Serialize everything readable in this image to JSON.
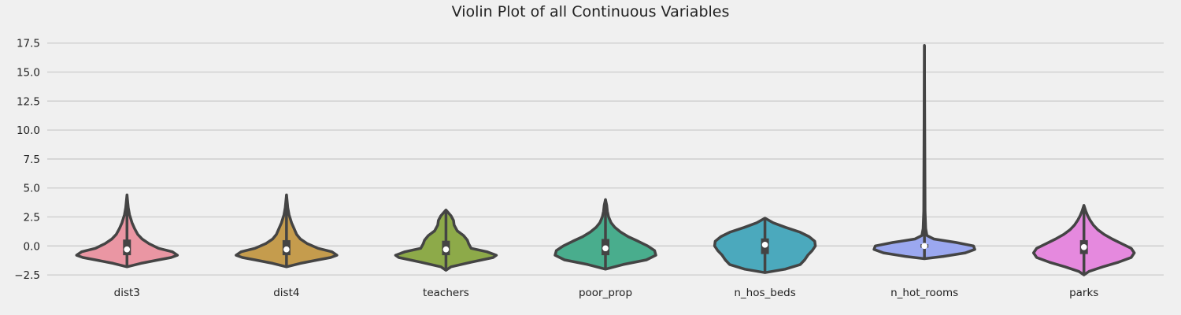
{
  "chart_data": {
    "type": "violin",
    "title": "Violin Plot of all Continuous Variables",
    "xlabel": "",
    "ylabel": "",
    "ylim": [
      -2.9,
      18.5
    ],
    "yticks": [
      -2.5,
      0.0,
      2.5,
      5.0,
      7.5,
      10.0,
      12.5,
      15.0,
      17.5
    ],
    "ytick_labels": [
      "−2.5",
      "0.0",
      "2.5",
      "5.0",
      "7.5",
      "10.0",
      "12.5",
      "15.0",
      "17.5"
    ],
    "grid": "y",
    "categories": [
      "dist3",
      "dist4",
      "teachers",
      "poor_prop",
      "n_hos_beds",
      "n_hot_rooms",
      "parks"
    ],
    "colors": [
      "#ea96a3",
      "#c59c4d",
      "#8daa49",
      "#49ad8d",
      "#4ba9bd",
      "#9ba8f0",
      "#e589de"
    ],
    "violins": [
      {
        "name": "dist3",
        "min": -1.8,
        "q1": -0.8,
        "median": -0.3,
        "q3": 0.55,
        "max": 4.4,
        "profile": [
          [
            -1.8,
            0.0
          ],
          [
            -1.5,
            0.22
          ],
          [
            -1.2,
            0.5
          ],
          [
            -1.0,
            0.7
          ],
          [
            -0.8,
            0.8
          ],
          [
            -0.5,
            0.72
          ],
          [
            -0.2,
            0.5
          ],
          [
            0.2,
            0.35
          ],
          [
            0.6,
            0.24
          ],
          [
            1.0,
            0.17
          ],
          [
            1.5,
            0.12
          ],
          [
            2.0,
            0.08
          ],
          [
            2.7,
            0.04
          ],
          [
            3.3,
            0.02
          ],
          [
            4.4,
            0.0
          ]
        ]
      },
      {
        "name": "dist4",
        "min": -1.8,
        "q1": -0.8,
        "median": -0.3,
        "q3": 0.5,
        "max": 4.4,
        "profile": [
          [
            -1.8,
            0.0
          ],
          [
            -1.5,
            0.22
          ],
          [
            -1.2,
            0.5
          ],
          [
            -1.0,
            0.7
          ],
          [
            -0.8,
            0.8
          ],
          [
            -0.5,
            0.72
          ],
          [
            -0.2,
            0.5
          ],
          [
            0.2,
            0.33
          ],
          [
            0.6,
            0.22
          ],
          [
            1.0,
            0.16
          ],
          [
            1.5,
            0.12
          ],
          [
            2.0,
            0.08
          ],
          [
            2.7,
            0.04
          ],
          [
            3.3,
            0.02
          ],
          [
            4.4,
            0.0
          ]
        ]
      },
      {
        "name": "teachers",
        "min": -2.1,
        "q1": -0.8,
        "median": -0.3,
        "q3": 0.45,
        "max": 3.1,
        "profile": [
          [
            -2.1,
            0.0
          ],
          [
            -1.8,
            0.08
          ],
          [
            -1.4,
            0.4
          ],
          [
            -1.0,
            0.75
          ],
          [
            -0.8,
            0.8
          ],
          [
            -0.5,
            0.65
          ],
          [
            -0.2,
            0.4
          ],
          [
            0.2,
            0.36
          ],
          [
            0.5,
            0.34
          ],
          [
            0.9,
            0.28
          ],
          [
            1.3,
            0.18
          ],
          [
            1.8,
            0.13
          ],
          [
            2.2,
            0.12
          ],
          [
            2.6,
            0.08
          ],
          [
            3.1,
            0.0
          ]
        ]
      },
      {
        "name": "poor_prop",
        "min": -2.0,
        "q1": -0.8,
        "median": -0.2,
        "q3": 0.6,
        "max": 4.0,
        "profile": [
          [
            -2.0,
            0.0
          ],
          [
            -1.6,
            0.28
          ],
          [
            -1.2,
            0.65
          ],
          [
            -0.8,
            0.8
          ],
          [
            -0.4,
            0.78
          ],
          [
            0.0,
            0.67
          ],
          [
            0.4,
            0.52
          ],
          [
            0.8,
            0.36
          ],
          [
            1.2,
            0.24
          ],
          [
            1.6,
            0.15
          ],
          [
            2.0,
            0.09
          ],
          [
            2.5,
            0.05
          ],
          [
            3.0,
            0.03
          ],
          [
            3.5,
            0.02
          ],
          [
            4.0,
            0.0
          ]
        ]
      },
      {
        "name": "n_hos_beds",
        "min": -2.3,
        "q1": -0.7,
        "median": 0.1,
        "q3": 0.65,
        "max": 2.4,
        "profile": [
          [
            -2.3,
            0.0
          ],
          [
            -2.0,
            0.32
          ],
          [
            -1.6,
            0.56
          ],
          [
            -1.2,
            0.63
          ],
          [
            -0.8,
            0.68
          ],
          [
            -0.4,
            0.75
          ],
          [
            0.0,
            0.8
          ],
          [
            0.4,
            0.79
          ],
          [
            0.8,
            0.7
          ],
          [
            1.2,
            0.55
          ],
          [
            1.6,
            0.33
          ],
          [
            2.0,
            0.13
          ],
          [
            2.4,
            0.0
          ]
        ]
      },
      {
        "name": "n_hot_rooms",
        "min": -1.1,
        "q1": -0.15,
        "median": 0.0,
        "q3": 0.15,
        "max": 17.3,
        "profile": [
          [
            -1.1,
            0.0
          ],
          [
            -0.9,
            0.3
          ],
          [
            -0.6,
            0.65
          ],
          [
            -0.3,
            0.8
          ],
          [
            0.0,
            0.78
          ],
          [
            0.3,
            0.5
          ],
          [
            0.6,
            0.15
          ],
          [
            0.9,
            0.04
          ],
          [
            1.5,
            0.02
          ],
          [
            3.0,
            0.01
          ],
          [
            17.3,
            0.0
          ]
        ]
      },
      {
        "name": "parks",
        "min": -2.5,
        "q1": -0.7,
        "median": -0.1,
        "q3": 0.5,
        "max": 3.5,
        "profile": [
          [
            -2.5,
            0.0
          ],
          [
            -2.2,
            0.08
          ],
          [
            -1.8,
            0.3
          ],
          [
            -1.4,
            0.55
          ],
          [
            -1.0,
            0.75
          ],
          [
            -0.6,
            0.8
          ],
          [
            -0.2,
            0.75
          ],
          [
            0.2,
            0.6
          ],
          [
            0.6,
            0.45
          ],
          [
            1.0,
            0.32
          ],
          [
            1.4,
            0.22
          ],
          [
            1.8,
            0.15
          ],
          [
            2.2,
            0.1
          ],
          [
            2.6,
            0.06
          ],
          [
            3.0,
            0.03
          ],
          [
            3.5,
            0.0
          ]
        ]
      }
    ]
  }
}
